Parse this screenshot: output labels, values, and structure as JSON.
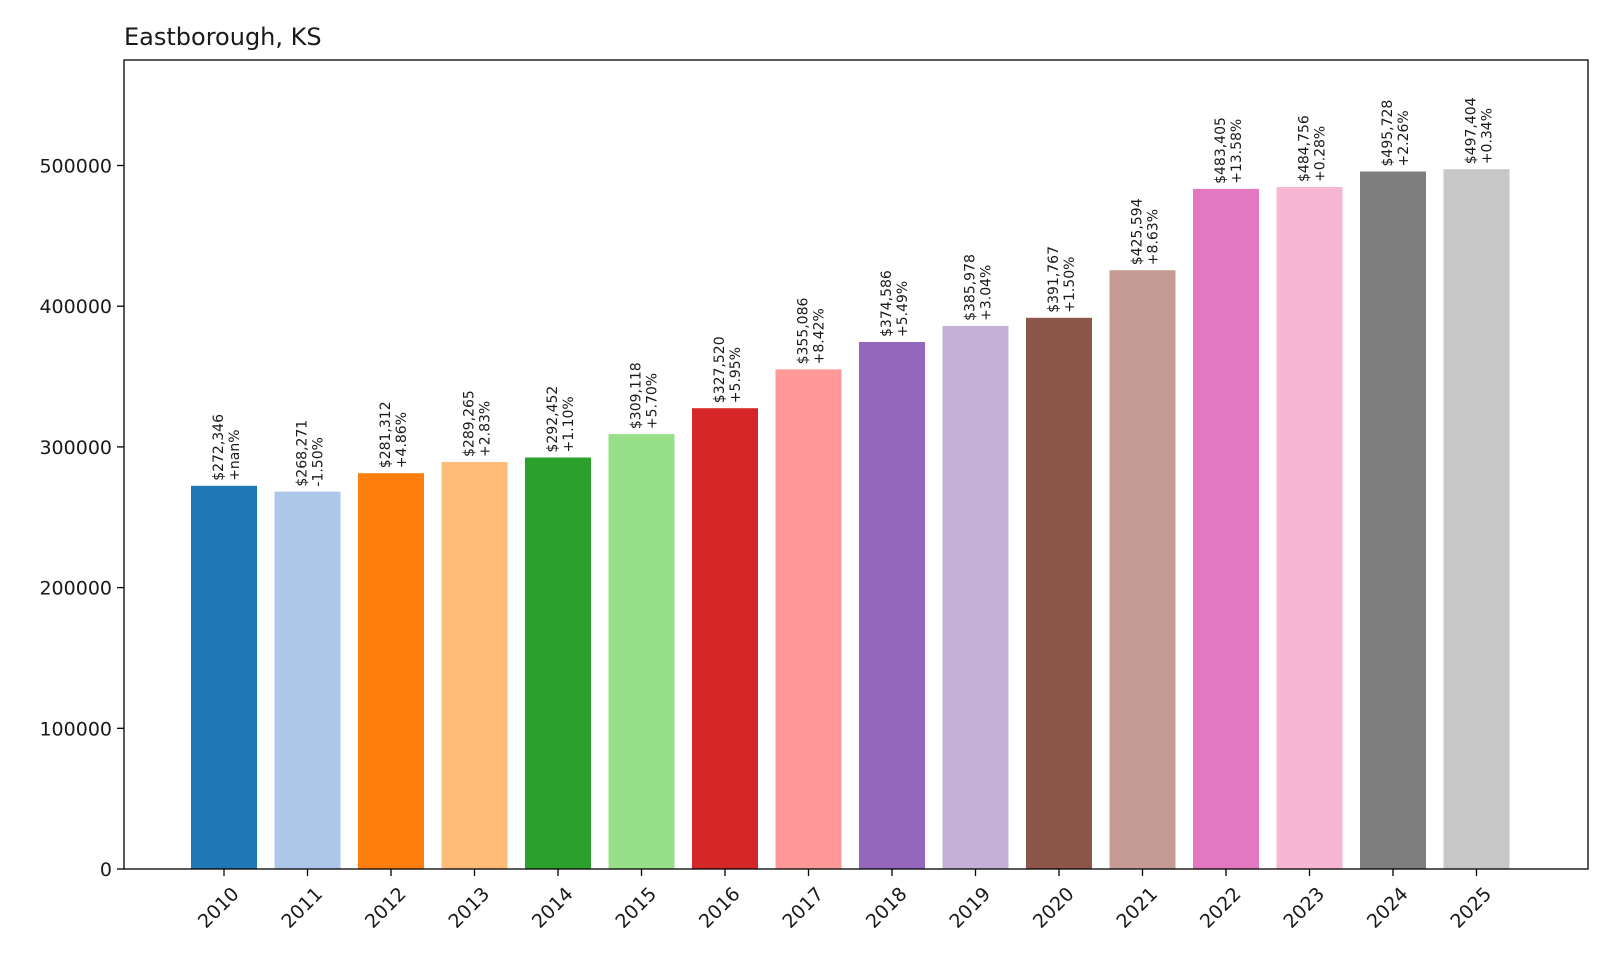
{
  "chart_data": {
    "type": "bar",
    "title": "Eastborough, KS",
    "xlabel": "",
    "ylabel": "",
    "ylim": [
      0,
      575000
    ],
    "yticks": [
      0,
      100000,
      200000,
      300000,
      400000,
      500000
    ],
    "grid": false,
    "legend": "none",
    "categories": [
      "2010",
      "2011",
      "2012",
      "2013",
      "2014",
      "2015",
      "2016",
      "2017",
      "2018",
      "2019",
      "2020",
      "2021",
      "2022",
      "2023",
      "2024",
      "2025"
    ],
    "values": [
      272346,
      268271,
      281312,
      289265,
      292452,
      309118,
      327520,
      355086,
      374586,
      385978,
      391767,
      425594,
      483405,
      484756,
      495728,
      497404
    ],
    "value_labels": [
      "$272,346",
      "$268,271",
      "$281,312",
      "$289,265",
      "$292,452",
      "$309,118",
      "$327,520",
      "$355,086",
      "$374,586",
      "$385,978",
      "$391,767",
      "$425,594",
      "$483,405",
      "$484,756",
      "$495,728",
      "$497,404"
    ],
    "change_labels": [
      "+nan%",
      "-1.50%",
      "+4.86%",
      "+2.83%",
      "+1.10%",
      "+5.70%",
      "+5.95%",
      "+8.42%",
      "+5.49%",
      "+3.04%",
      "+1.50%",
      "+8.63%",
      "+13.58%",
      "+0.28%",
      "+2.26%",
      "+0.34%"
    ],
    "colors": [
      "#1f77b4",
      "#aec7e8",
      "#ff7f0e",
      "#ffbb78",
      "#2ca02c",
      "#98df8a",
      "#d62728",
      "#ff9896",
      "#9467bd",
      "#c5b0d5",
      "#8c564b",
      "#c49c94",
      "#e377c2",
      "#f7b6d2",
      "#7f7f7f",
      "#c7c7c7"
    ]
  }
}
